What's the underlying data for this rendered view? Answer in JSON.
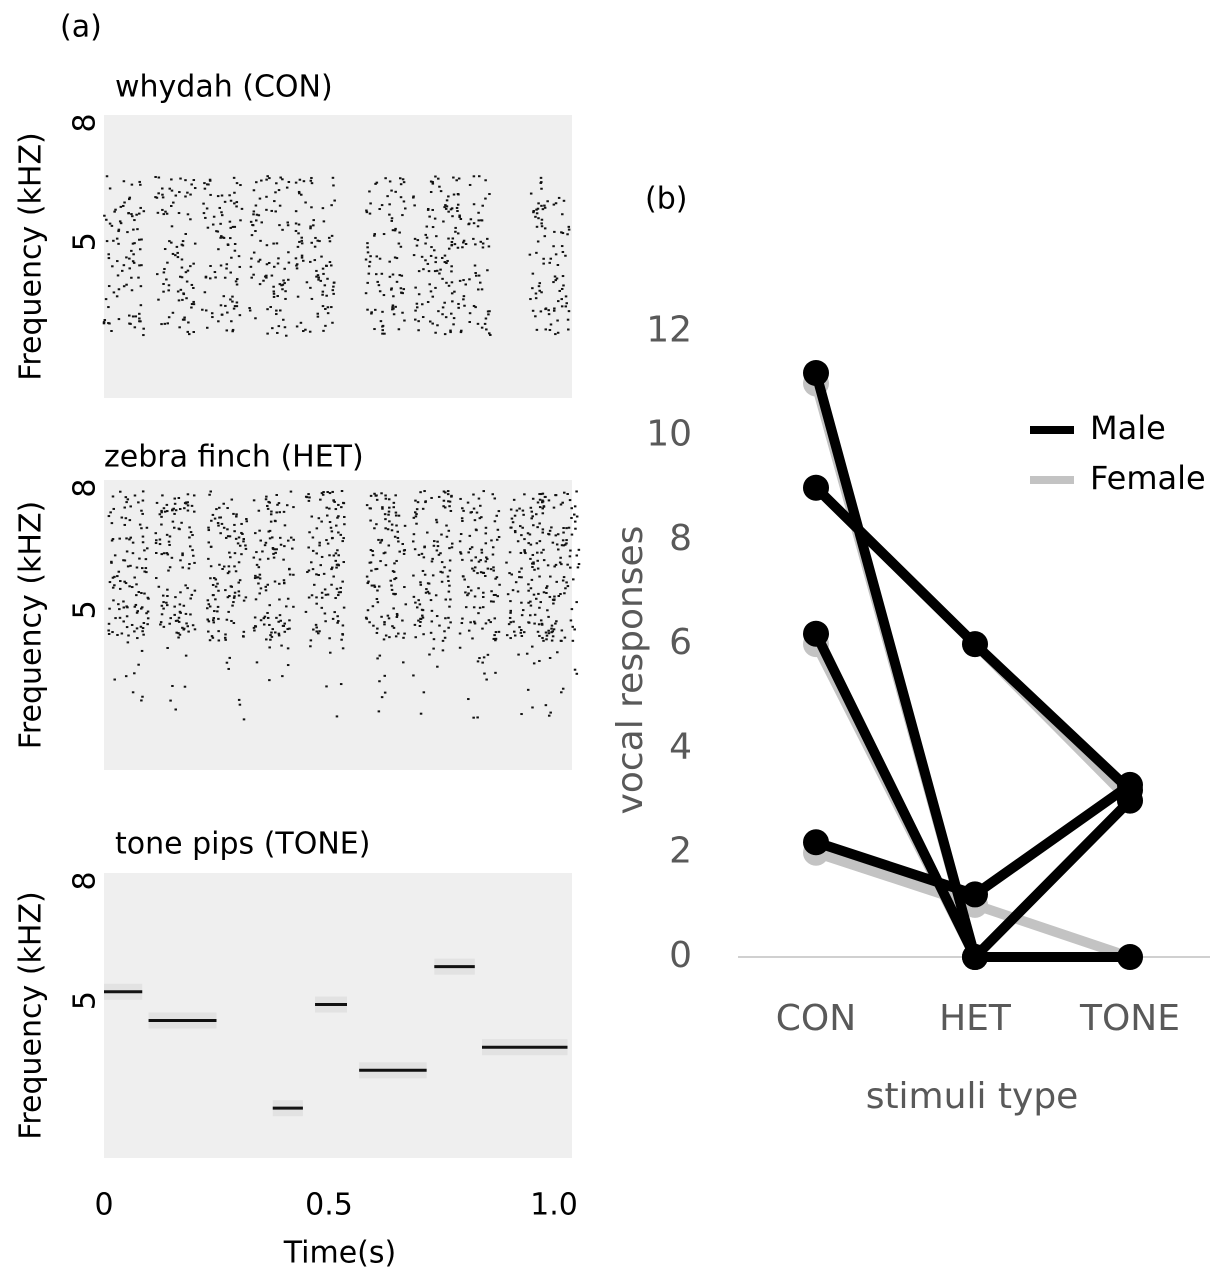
{
  "chart_data": [
    {
      "type": "spectrogram",
      "panel": "(a)",
      "xlabel": "Time(s)",
      "xlim": [
        0,
        1.04
      ],
      "xticks": [
        0,
        0.5,
        {
          "value": 1,
          "label": "1.0"
        }
      ],
      "ylim": [
        1.05,
        8.2
      ],
      "yticks": [
        5,
        8
      ],
      "plots": [
        {
          "title": "whydah (CON)",
          "ylabel": "Frequency (kHZ)"
        },
        {
          "title": "zebra finch (HET)",
          "ylabel": "Frequency (kHZ)"
        },
        {
          "title": "tone pips (TONE)",
          "ylabel": "Frequency (kHZ)",
          "tones": [
            {
              "start": 0,
              "end": 0.085,
              "freq": 5.22
            },
            {
              "start": 0.099,
              "end": 0.25,
              "freq": 4.5
            },
            {
              "start": 0.375,
              "end": 0.442,
              "freq": 2.3
            },
            {
              "start": 0.469,
              "end": 0.54,
              "freq": 4.9
            },
            {
              "start": 0.567,
              "end": 0.717,
              "freq": 3.25
            },
            {
              "start": 0.734,
              "end": 0.824,
              "freq": 5.85
            },
            {
              "start": 0.84,
              "end": 1.03,
              "freq": 3.83
            }
          ]
        }
      ]
    },
    {
      "type": "line",
      "panel": "(b)",
      "xlabel": "stimuli type",
      "ylabel": "vocal responses",
      "categories": [
        "CON",
        "HET",
        "TONE"
      ],
      "ylim": [
        0,
        12.6
      ],
      "yticks": [
        0,
        2,
        4,
        6,
        8,
        10,
        12
      ],
      "legend": "top-right",
      "series": [
        {
          "name": "Female",
          "color": "#c3c3c3",
          "lines": [
            [
              11,
              0,
              3
            ],
            [
              9,
              6,
              3
            ],
            [
              6,
              0,
              0
            ],
            [
              2,
              1,
              0
            ]
          ]
        },
        {
          "name": "Male",
          "color": "#000000",
          "lines": [
            [
              11.2,
              0,
              3.0
            ],
            [
              9,
              6,
              3.2
            ],
            [
              6.2,
              0,
              0
            ],
            [
              2.2,
              1.2,
              3.3
            ]
          ]
        }
      ]
    }
  ]
}
